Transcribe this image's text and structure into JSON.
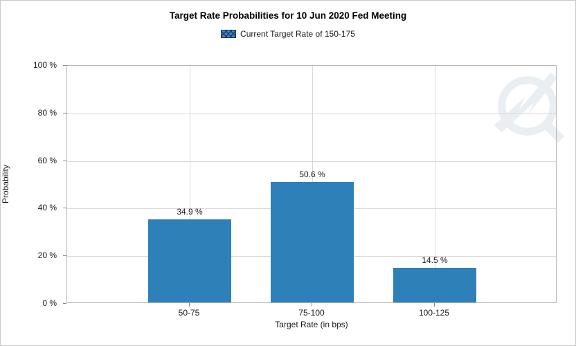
{
  "chart_data": {
    "type": "bar",
    "title": "Target Rate Probabilities for 10 Jun 2020 Fed Meeting",
    "legend": [
      {
        "label": "Current Target Rate of 150-175",
        "swatch": "blue-crosshatch"
      }
    ],
    "legend_position": "top-center",
    "categories": [
      "50-75",
      "75-100",
      "100-125"
    ],
    "values": [
      34.9,
      50.6,
      14.5
    ],
    "value_labels": [
      "34.9 %",
      "50.6 %",
      "14.5 %"
    ],
    "xlabel": "Target Rate (in bps)",
    "ylabel": "Probability",
    "ylim": [
      0,
      100
    ],
    "y_ticks": [
      "100 %",
      "80 %",
      "60 %",
      "40 %",
      "20 %",
      "0 %"
    ],
    "y_tick_values": [
      100,
      80,
      60,
      40,
      20,
      0
    ],
    "grid": "horizontal and vertical light gray gridlines",
    "bar_color": "#2e80b9",
    "gridline_color": "#d9d9d9",
    "plot_border_color": "#b3b3b3",
    "watermark": "circular lightning-bolt logo (faint, top-right of plot)"
  }
}
